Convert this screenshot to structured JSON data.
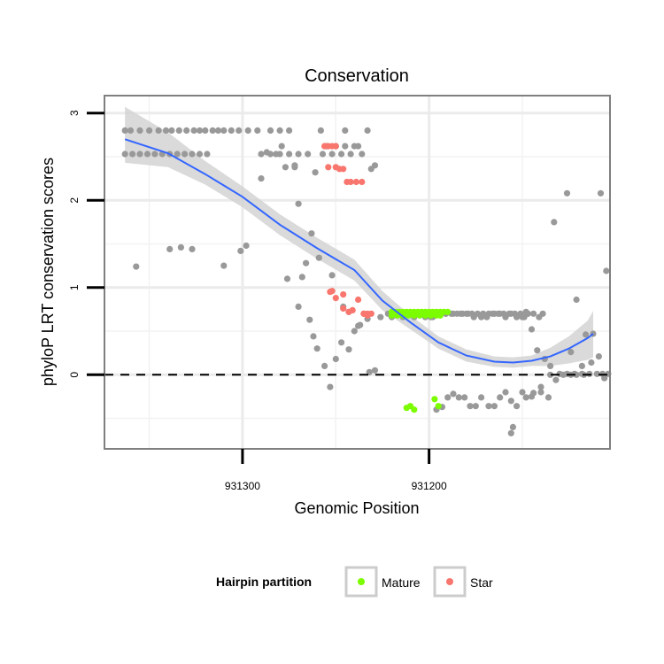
{
  "chart_data": {
    "type": "scatter",
    "title": "Conservation",
    "xlabel": "Genomic Position",
    "ylabel": "phyloP LRT conservation scores",
    "x_reversed": true,
    "xlim": [
      931374,
      931103
    ],
    "ylim": [
      -0.85,
      3.2
    ],
    "x_ticks": [
      931300,
      931200
    ],
    "x_tick_labels": [
      "931300",
      "931200"
    ],
    "y_ticks": [
      0,
      1,
      2,
      3
    ],
    "y_tick_labels": [
      "0",
      "1",
      "2",
      "3"
    ],
    "reference_line": {
      "y": 0,
      "style": "dashed"
    },
    "grid": true,
    "legend": {
      "title": "Hairpin partition",
      "position": "bottom",
      "entries": [
        {
          "label": "Mature",
          "color": "#7CFC00"
        },
        {
          "label": "Star",
          "color": "#F8766D"
        }
      ]
    },
    "colors": {
      "other": "#999999",
      "Mature": "#7CFC00",
      "Star": "#F8766D",
      "smooth": "#3366FF",
      "ribbon": "#D3D3D3"
    },
    "smooth": {
      "x": [
        931363,
        931340,
        931320,
        931300,
        931280,
        931260,
        931240,
        931225,
        931210,
        931195,
        931180,
        931165,
        931155,
        931145,
        931135,
        931125,
        931115,
        931112
      ],
      "y": [
        2.7,
        2.54,
        2.3,
        2.04,
        1.72,
        1.45,
        1.2,
        0.85,
        0.6,
        0.37,
        0.22,
        0.15,
        0.14,
        0.16,
        0.21,
        0.3,
        0.42,
        0.47
      ],
      "ymin": [
        2.43,
        2.38,
        2.18,
        1.92,
        1.6,
        1.33,
        1.08,
        0.74,
        0.52,
        0.3,
        0.15,
        0.09,
        0.08,
        0.1,
        0.1,
        0.13,
        0.17,
        0.2
      ],
      "ymax": [
        3.07,
        2.78,
        2.45,
        2.16,
        1.84,
        1.57,
        1.32,
        0.96,
        0.68,
        0.44,
        0.29,
        0.21,
        0.2,
        0.22,
        0.31,
        0.44,
        0.62,
        0.73
      ]
    },
    "series": [
      {
        "key": "other",
        "x": [
          931363,
          931360,
          931355,
          931350,
          931345,
          931341,
          931338,
          931334,
          931330,
          931326,
          931323,
          931320,
          931316,
          931313,
          931310,
          931306,
          931302,
          931297,
          931292,
          931363,
          931359,
          931355,
          931351,
          931347,
          931343,
          931339,
          931335,
          931331,
          931327,
          931323,
          931319,
          931290,
          931285,
          931280,
          931275,
          931270,
          931265,
          931285,
          931280,
          931275,
          931255,
          931250,
          931245,
          931240,
          931257,
          931252,
          931247,
          931242,
          931222,
          931218,
          931214,
          931210,
          931206,
          931202,
          931226,
          931220,
          931214,
          931208,
          931202,
          931198,
          931245,
          931258,
          931238,
          931233,
          931236,
          931229,
          931231,
          931357,
          931339,
          931327,
          931333,
          931310,
          931301,
          931298,
          931290,
          931277,
          931272,
          931272,
          931270,
          931268,
          931264,
          931262,
          931260,
          931256,
          931253,
          931250,
          931247,
          931243,
          931240,
          931237,
          931233,
          931287,
          931282,
          931279,
          931276,
          931270,
          931266,
          931263,
          931261,
          931259,
          931252,
          931246,
          931243,
          931238,
          931232,
          931229,
          931196,
          931193,
          931190,
          931187,
          931184,
          931181,
          931178,
          931175,
          931172,
          931168,
          931165,
          931162,
          931159,
          931156,
          931153,
          931150,
          931145,
          931140,
          931136,
          931198,
          931194,
          931191,
          931187,
          931183,
          931179,
          931176,
          931172,
          931169,
          931166,
          931163,
          931159,
          931156,
          931153,
          931150,
          931147,
          931144,
          931141,
          931139,
          931199,
          931197,
          931194,
          931191,
          931188,
          931185,
          931182,
          931180,
          931177,
          931174,
          931171,
          931168,
          931165,
          931162,
          931160,
          931157,
          931154,
          931151,
          931149,
          931147,
          931156,
          931155,
          931133,
          931126,
          931121,
          931112,
          931108,
          931105,
          931148,
          931145,
          931142,
          931138,
          931135,
          931130,
          931126,
          931122,
          931118,
          931114,
          931110,
          931107,
          931104,
          931124,
          931118,
          931148,
          931144,
          931140,
          931135,
          931132,
          931128,
          931124,
          931121,
          931117,
          931116,
          931113,
          931109,
          931106
        ],
        "y": [
          2.8,
          2.8,
          2.8,
          2.8,
          2.8,
          2.8,
          2.8,
          2.8,
          2.8,
          2.8,
          2.8,
          2.8,
          2.8,
          2.8,
          2.8,
          2.8,
          2.8,
          2.8,
          2.8,
          2.53,
          2.53,
          2.53,
          2.53,
          2.53,
          2.53,
          2.53,
          2.53,
          2.53,
          2.53,
          2.53,
          2.53,
          2.53,
          2.53,
          2.53,
          2.53,
          2.53,
          2.53,
          2.8,
          2.8,
          2.8,
          2.62,
          2.62,
          2.62,
          2.62,
          2.53,
          2.53,
          2.53,
          2.53,
          0.7,
          0.7,
          0.7,
          0.7,
          0.7,
          0.7,
          0.66,
          0.66,
          0.66,
          0.66,
          0.66,
          0.66,
          2.8,
          2.8,
          2.62,
          2.8,
          2.53,
          2.4,
          2.36,
          1.24,
          1.44,
          1.44,
          1.46,
          1.25,
          1.42,
          1.48,
          2.25,
          2.38,
          2.38,
          2.4,
          1.96,
          1.12,
          0.63,
          0.44,
          0.3,
          0.1,
          -0.14,
          0.18,
          0.37,
          0.29,
          0.5,
          0.57,
          0.64,
          2.55,
          2.53,
          2.62,
          1.1,
          0.78,
          1.28,
          1.62,
          2.32,
          1.34,
          1.14,
          0.78,
          0.72,
          0.56,
          0.03,
          0.05,
          -0.4,
          -0.37,
          -0.26,
          -0.22,
          -0.26,
          -0.26,
          -0.36,
          -0.36,
          -0.26,
          -0.36,
          -0.36,
          -0.26,
          -0.2,
          -0.3,
          -0.36,
          -0.2,
          -0.25,
          -0.2,
          -0.26,
          0.7,
          0.7,
          0.7,
          0.7,
          0.7,
          0.7,
          0.66,
          0.66,
          0.66,
          0.7,
          0.7,
          0.66,
          0.7,
          0.66,
          0.66,
          0.7,
          0.7,
          0.66,
          0.7,
          0.66,
          0.7,
          0.7,
          0.7,
          0.7,
          0.7,
          0.7,
          0.7,
          0.7,
          0.7,
          0.7,
          0.7,
          0.7,
          0.7,
          0.7,
          0.7,
          0.7,
          0.7,
          0.66,
          0.7,
          -0.67,
          -0.6,
          1.75,
          2.08,
          0.86,
          0.47,
          2.08,
          1.19,
          0.72,
          0.52,
          0.28,
          0.18,
          0.1,
          0.01,
          0.01,
          0.01,
          0.01,
          0.01,
          0.01,
          0.01,
          0.01,
          0.26,
          0.1,
          -0.26,
          -0.21,
          -0.14,
          0.0,
          -0.06,
          0.0,
          0.0,
          0.0,
          0.0,
          0.46,
          0.14,
          0.21,
          -0.04
        ]
      },
      {
        "key": "Star",
        "x": [
          931256,
          931254,
          931252,
          931250,
          931254,
          931248,
          931250,
          931246,
          931236,
          931239,
          931242,
          931244,
          931235,
          931233,
          931231,
          931253,
          931246,
          931250,
          931252,
          931238,
          931241,
          931243,
          931246,
          931233,
          931235
        ],
        "y": [
          2.62,
          2.62,
          2.62,
          2.62,
          2.38,
          2.36,
          2.38,
          2.36,
          2.21,
          2.21,
          2.21,
          2.21,
          0.7,
          0.7,
          0.7,
          0.95,
          0.92,
          0.88,
          0.96,
          0.86,
          0.74,
          0.72,
          0.76,
          0.68,
          0.7
        ]
      },
      {
        "key": "Mature",
        "x": [
          931220,
          931218,
          931216,
          931214,
          931212,
          931210,
          931208,
          931206,
          931204,
          931202,
          931200,
          931198,
          931196,
          931194,
          931192,
          931190,
          931220,
          931217,
          931214,
          931211,
          931208,
          931205,
          931202,
          931199,
          931196,
          931194,
          931210,
          931208,
          931212,
          931197,
          931195
        ],
        "y": [
          0.72,
          0.72,
          0.72,
          0.72,
          0.72,
          0.72,
          0.72,
          0.72,
          0.72,
          0.72,
          0.72,
          0.72,
          0.72,
          0.72,
          0.72,
          0.72,
          0.68,
          0.68,
          0.68,
          0.68,
          0.68,
          0.68,
          0.68,
          0.68,
          0.68,
          0.68,
          -0.36,
          -0.4,
          -0.38,
          -0.28,
          -0.36
        ]
      }
    ]
  }
}
